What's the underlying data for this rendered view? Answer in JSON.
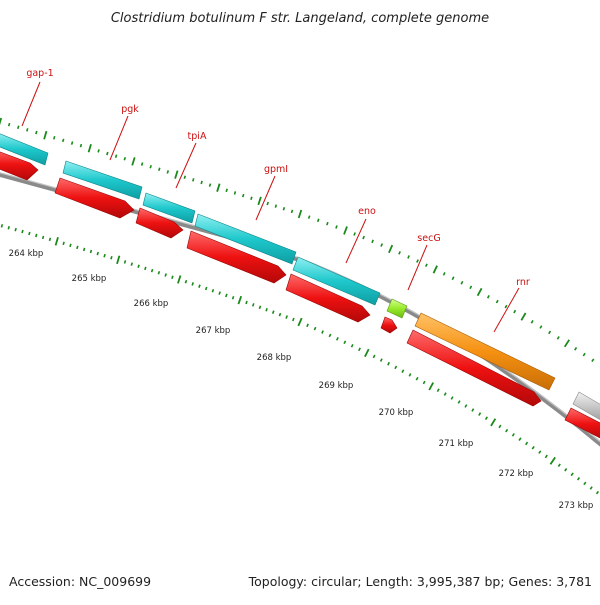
{
  "title": "Clostridium botulinum F str. Langeland, complete genome",
  "footer": {
    "accession": "Accession: NC_009699",
    "summary": "Topology: circular; Length: 3,995,387 bp; Genes: 3,781"
  },
  "colors": {
    "feature_teal": "#1ec8cc",
    "feature_red": "#ee1111",
    "feature_orange": "#f59112",
    "feature_green": "#97ea2a",
    "feature_gray": "#c6c6c6",
    "backbone": "#8a8a8a",
    "tick": "#1a8a1a",
    "label_red": "#cc1111"
  },
  "genes": [
    {
      "name": "gap-1"
    },
    {
      "name": "pgk"
    },
    {
      "name": "tpiA"
    },
    {
      "name": "gpmI"
    },
    {
      "name": "eno"
    },
    {
      "name": "secG"
    },
    {
      "name": "rnr"
    }
  ],
  "kbp_labels": [
    "264 kbp",
    "265 kbp",
    "266 kbp",
    "267 kbp",
    "268 kbp",
    "269 kbp",
    "270 kbp",
    "271 kbp",
    "272 kbp",
    "273 kbp"
  ]
}
